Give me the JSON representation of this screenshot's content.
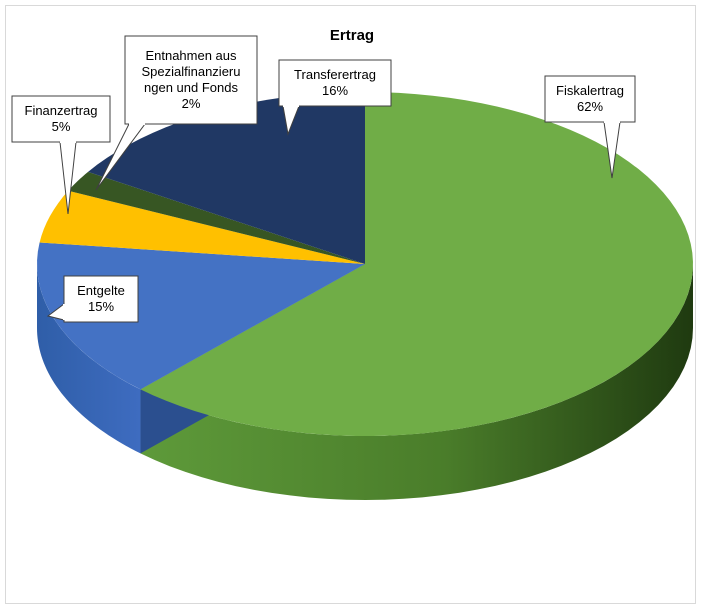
{
  "chart_data": {
    "type": "pie",
    "title": "Ertrag",
    "slices": [
      {
        "label": "Fiskalertrag",
        "value": 62,
        "pct_label": "62%",
        "color": "#70ad47"
      },
      {
        "label": "Entgelte",
        "value": 15,
        "pct_label": "15%",
        "color": "#4472c4"
      },
      {
        "label": "Finanzertrag",
        "value": 5,
        "pct_label": "5%",
        "color": "#ffc000"
      },
      {
        "label": "Entnahmen aus Spezialfinanzierungen und Fonds",
        "label_lines": [
          "Entnahmen aus",
          "Spezialfinanzieru",
          "ngen und Fonds"
        ],
        "value": 2,
        "pct_label": "2%",
        "color": "#375623"
      },
      {
        "label": "Transferertrag",
        "value": 16,
        "pct_label": "16%",
        "color": "#203864"
      }
    ],
    "legend": "none",
    "style": "3d"
  }
}
